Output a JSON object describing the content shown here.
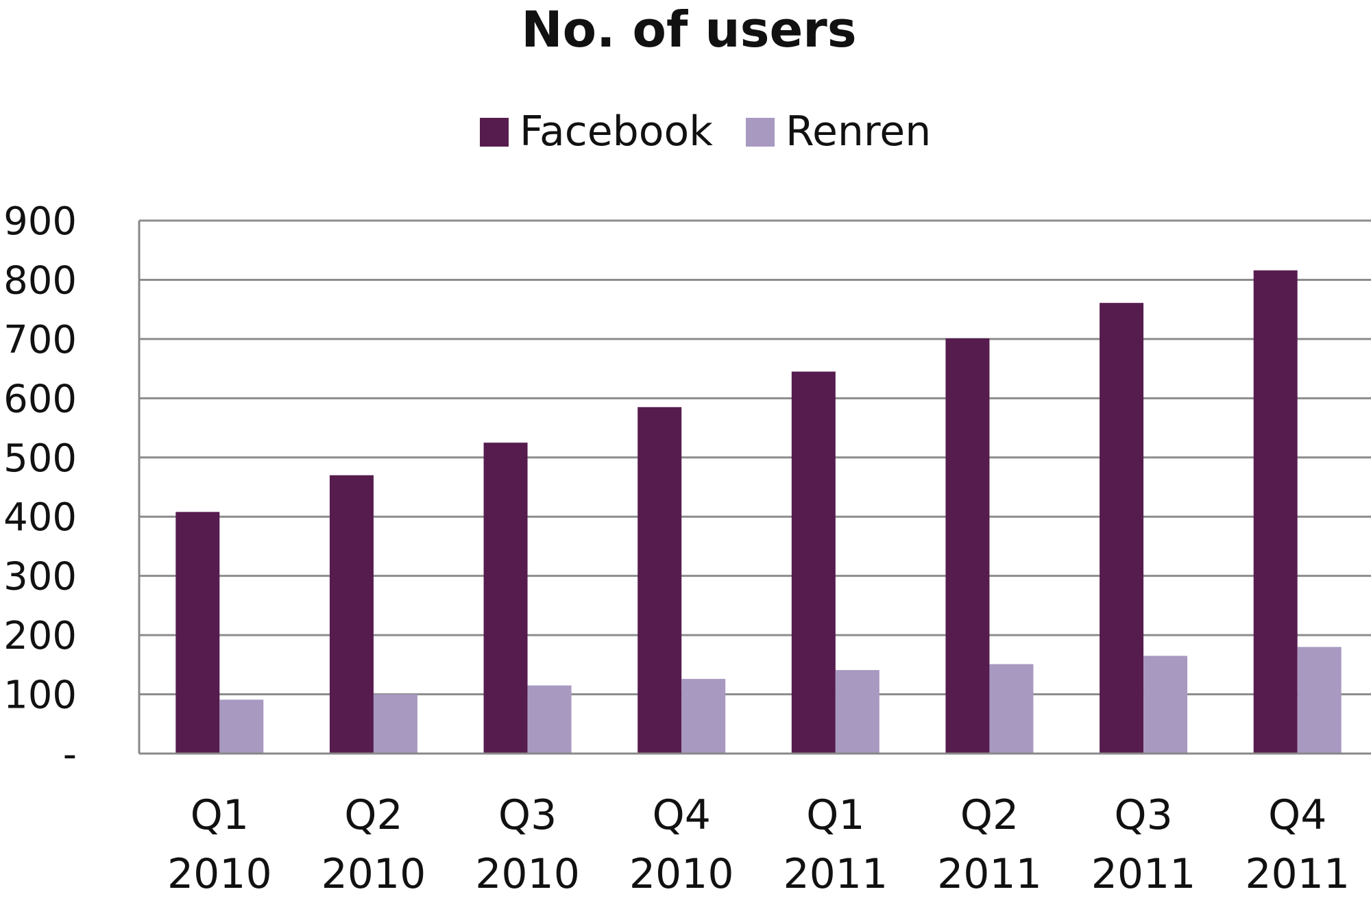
{
  "chart_data": {
    "type": "bar",
    "title": "No. of users",
    "xlabel": "",
    "ylabel": "",
    "ylim": [
      0,
      900
    ],
    "yticks": [
      0,
      100,
      200,
      300,
      400,
      500,
      600,
      700,
      800,
      900
    ],
    "ytick_labels": [
      "-",
      "100",
      "200",
      "300",
      "400",
      "500",
      "600",
      "700",
      "800",
      "900"
    ],
    "categories": [
      {
        "quarter": "Q1",
        "year": "2010"
      },
      {
        "quarter": "Q2",
        "year": "2010"
      },
      {
        "quarter": "Q3",
        "year": "2010"
      },
      {
        "quarter": "Q4",
        "year": "2010"
      },
      {
        "quarter": "Q1",
        "year": "2011"
      },
      {
        "quarter": "Q2",
        "year": "2011"
      },
      {
        "quarter": "Q3",
        "year": "2011"
      },
      {
        "quarter": "Q4",
        "year": "2011"
      }
    ],
    "series": [
      {
        "name": "Facebook",
        "color": "#561c4e",
        "values": [
          408,
          470,
          525,
          585,
          645,
          701,
          761,
          816
        ]
      },
      {
        "name": "Renren",
        "color": "#a899c1",
        "values": [
          91,
          100,
          115,
          126,
          141,
          151,
          165,
          180
        ]
      }
    ],
    "grid": true,
    "legend": "top"
  }
}
